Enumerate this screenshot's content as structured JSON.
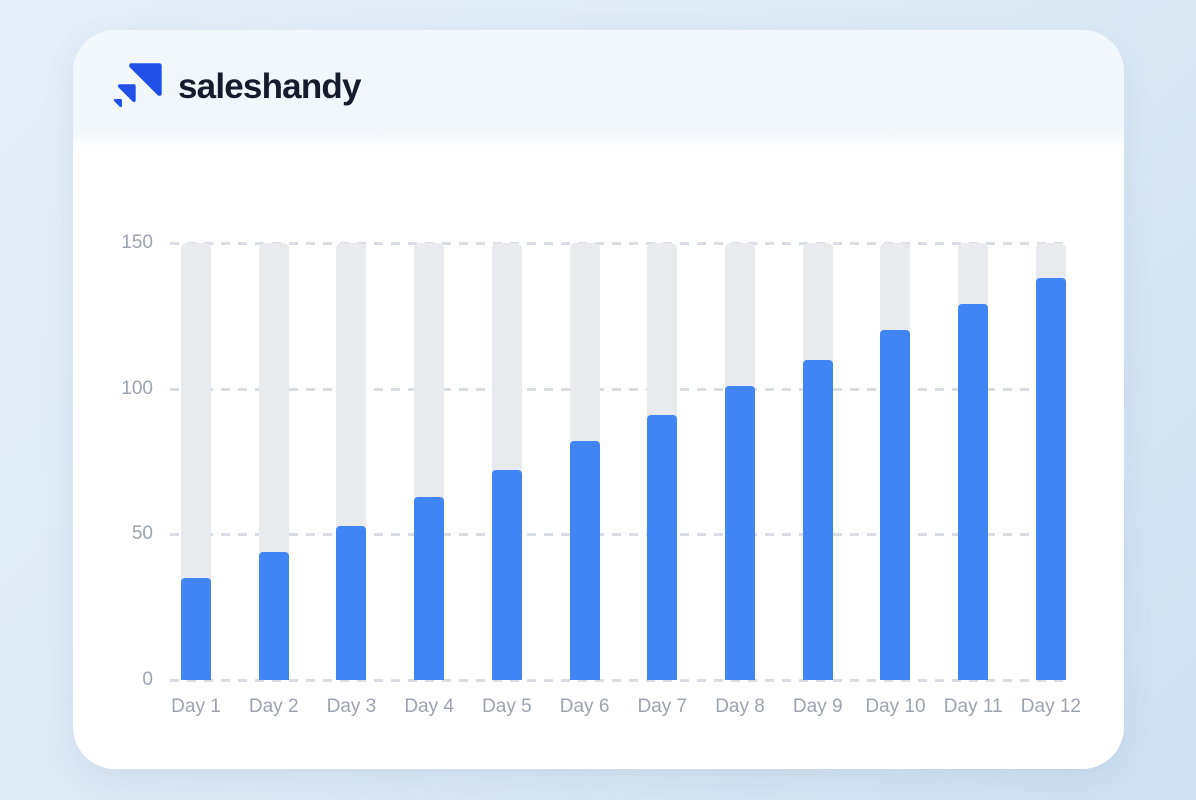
{
  "brand": {
    "name": "saleshandy",
    "icon": "saleshandy-triangles-icon"
  },
  "colors": {
    "page_bg_start": "#E4EEF8",
    "page_bg_mid": "#DCE9F5",
    "page_bg_end": "#CDDFF0",
    "card_bg": "#FFFFFF",
    "header_tint": "#F2F7FB",
    "text_dark": "#161B2E",
    "logo_blue": "#2050E8",
    "bar_fill": "#4184F4",
    "bar_track": "#E9EAED",
    "gridline": "#DADEE4",
    "axis_label": "#9CA3AF"
  },
  "chart_data": {
    "type": "bar",
    "title": "",
    "xlabel": "",
    "ylabel": "",
    "categories": [
      "Day 1",
      "Day 2",
      "Day 3",
      "Day 4",
      "Day 5",
      "Day 6",
      "Day 7",
      "Day 8",
      "Day 9",
      "Day 10",
      "Day 11",
      "Day 12"
    ],
    "values": [
      35,
      44,
      53,
      63,
      72,
      82,
      91,
      101,
      110,
      120,
      129,
      138
    ],
    "track_max": 150,
    "ylim": [
      0,
      150
    ],
    "yticks": [
      0,
      50,
      100,
      150
    ],
    "grid": "horizontal-dashed",
    "legend": "none"
  }
}
